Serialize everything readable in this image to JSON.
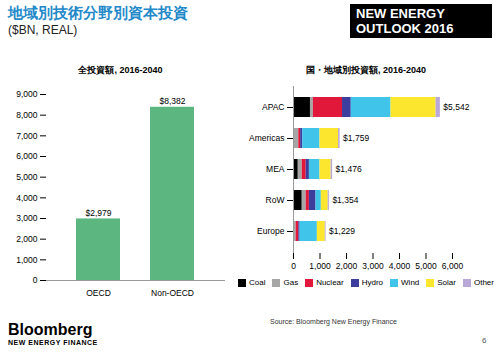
{
  "slide": {
    "title": "地域別技術分野別資本投資",
    "subtitle": "($BN, REAL)",
    "badge": [
      "NEW ENERGY",
      "OUTLOOK 2016"
    ],
    "logo": [
      "Bloomberg",
      "NEW ENERGY FINANCE"
    ],
    "source": "Source: Bloomberg New Energy Finance",
    "page": "6"
  },
  "chart_data": [
    {
      "type": "bar",
      "title": "全投資額, 2016-2040",
      "categories": [
        "OECD",
        "Non-OECD"
      ],
      "values": [
        2979,
        8382
      ],
      "value_labels": [
        "$2,979",
        "$8,382"
      ],
      "data_labels": true,
      "color": "#5bb77f",
      "ylim": [
        0,
        9000
      ],
      "yticks": [
        0,
        {
          "value": 1000,
          "label": "1,000"
        },
        {
          "value": 2000,
          "label": "2,000"
        },
        {
          "value": 3000,
          "label": "3,000"
        },
        {
          "value": 4000,
          "label": "4,000"
        },
        {
          "value": 5000,
          "label": "5,000"
        },
        {
          "value": 6000,
          "label": "6,000"
        },
        {
          "value": 7000,
          "label": "7,000"
        },
        {
          "value": 8000,
          "label": "8,000"
        },
        {
          "value": 9000,
          "label": "9,000"
        }
      ],
      "grid": false
    },
    {
      "type": "bar",
      "title": "国・地域別投資額, 2016-2040",
      "orientation": "horizontal",
      "stacked": true,
      "categories": [
        "APAC",
        "Americas",
        "MEA",
        "RoW",
        "Europe"
      ],
      "series": [
        {
          "name": "Coal",
          "color": "#000000",
          "values": [
            640,
            20,
            180,
            330,
            20
          ]
        },
        {
          "name": "Gas",
          "color": "#a6a6a6",
          "values": [
            110,
            180,
            150,
            150,
            80
          ]
        },
        {
          "name": "Nuclear",
          "color": "#e2183a",
          "values": [
            1100,
            70,
            150,
            120,
            100
          ]
        },
        {
          "name": "Hydro",
          "color": "#3d3d9e",
          "values": [
            330,
            80,
            120,
            250,
            50
          ]
        },
        {
          "name": "Wind",
          "color": "#40c4ea",
          "values": [
            1500,
            650,
            400,
            200,
            650
          ]
        },
        {
          "name": "Solar",
          "color": "#fde72e",
          "values": [
            1700,
            700,
            420,
            260,
            300
          ]
        },
        {
          "name": "Other",
          "color": "#b9a7d8",
          "values": [
            162,
            59,
            56,
            44,
            29
          ]
        }
      ],
      "totals": [
        5542,
        1759,
        1476,
        1354,
        1229
      ],
      "total_labels": [
        "$5,542",
        "$1,759",
        "$1,476",
        "$1,354",
        "$1,229"
      ],
      "xlim": [
        0,
        6000
      ],
      "xticks": [
        0,
        {
          "value": 1000,
          "label": "1,000"
        },
        {
          "value": 2000,
          "label": "2,000"
        },
        {
          "value": 3000,
          "label": "3,000"
        },
        {
          "value": 4000,
          "label": "4,000"
        },
        {
          "value": 5000,
          "label": "5,000"
        },
        {
          "value": 6000,
          "label": "6,000"
        }
      ],
      "legend": "bottom",
      "grid": false
    }
  ]
}
